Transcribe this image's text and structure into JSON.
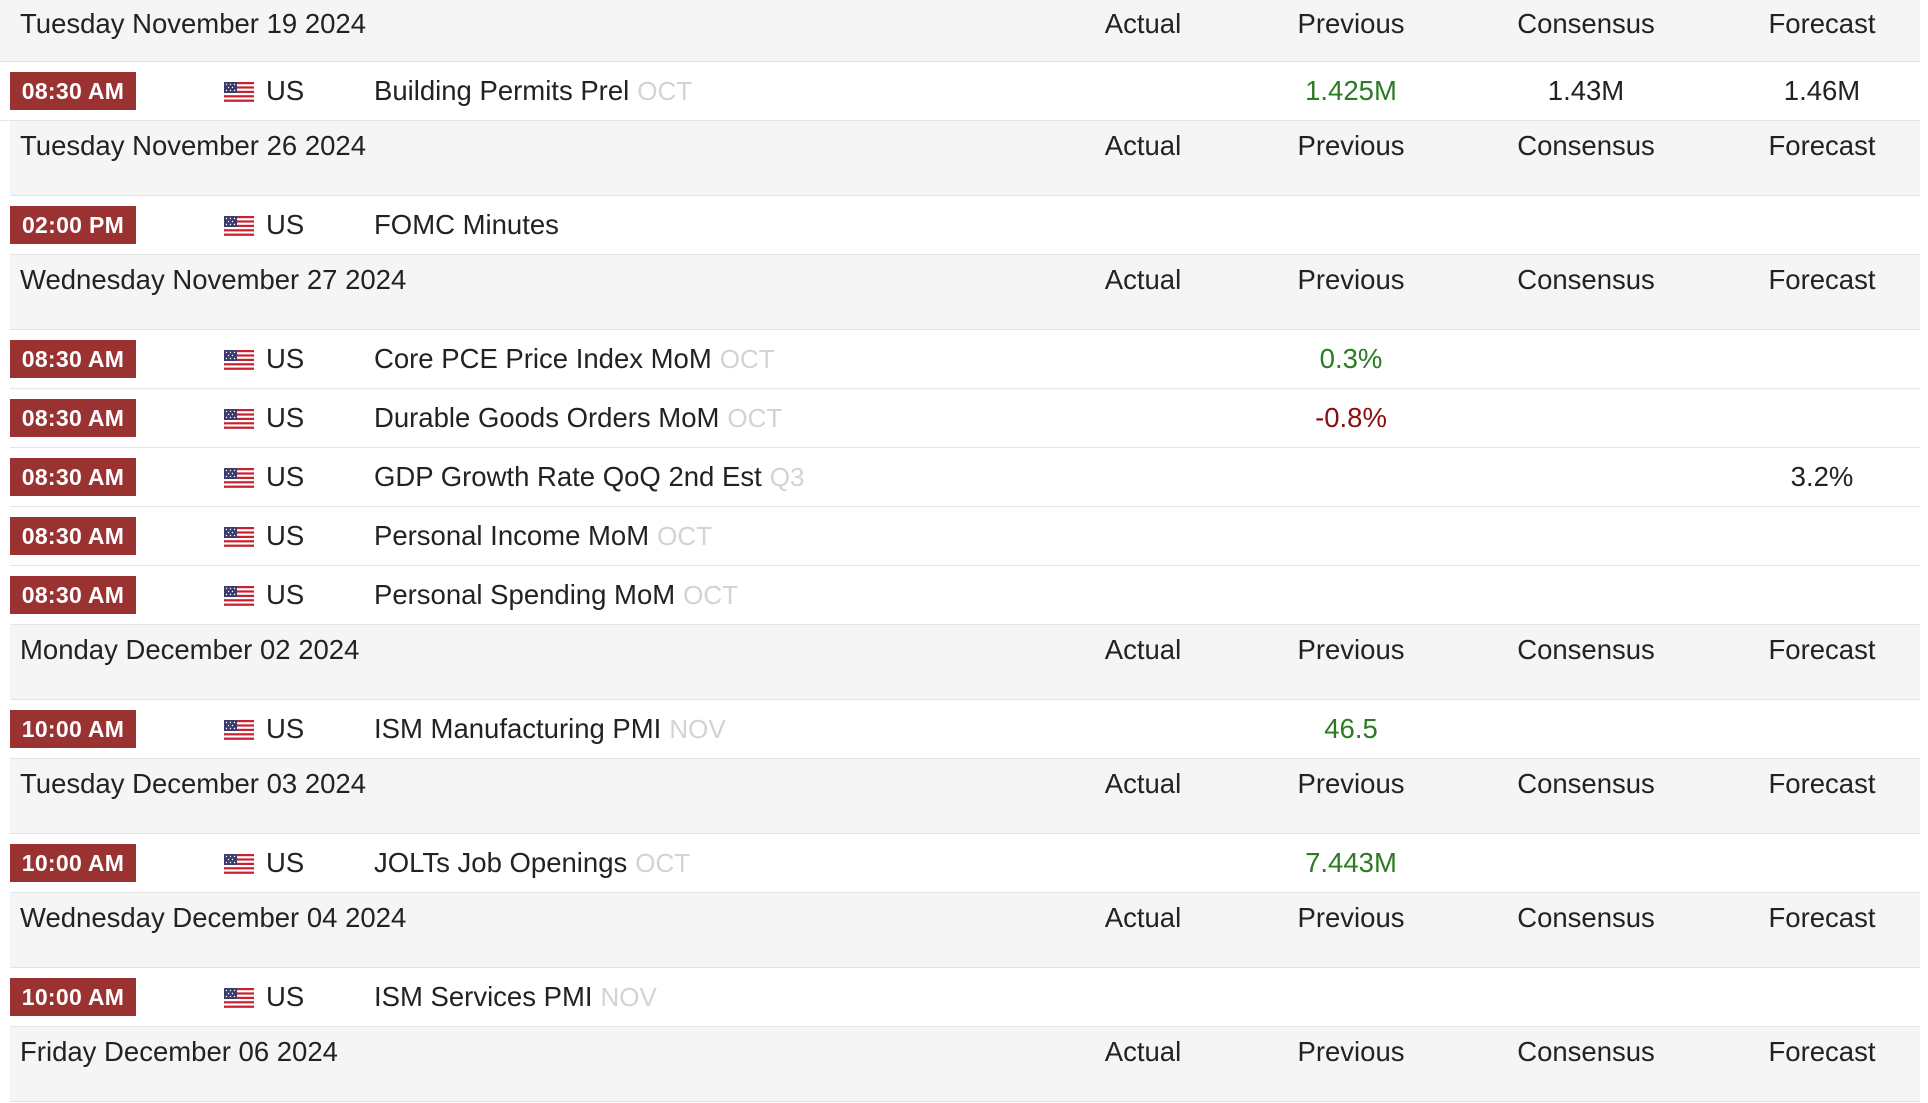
{
  "columns": {
    "actual": "Actual",
    "previous": "Previous",
    "consensus": "Consensus",
    "forecast": "Forecast"
  },
  "colors": {
    "time_badge": "#9b3232",
    "positive": "#2d7a24",
    "negative": "#8b0d0d",
    "reference": "#d3d3d3"
  },
  "icons": {
    "flag": "us-flag-icon"
  },
  "days": [
    {
      "date": "Tuesday November 19 2024",
      "events": [
        {
          "time": "08:30 AM",
          "country": "US",
          "name": "Building Permits Prel",
          "reference": "OCT",
          "actual": "",
          "previous": "1.425M",
          "previous_tone": "pos",
          "consensus": "1.43M",
          "forecast": "1.46M"
        }
      ]
    },
    {
      "date": "Tuesday November 26 2024",
      "events": [
        {
          "time": "02:00 PM",
          "country": "US",
          "name": "FOMC Minutes",
          "reference": "",
          "actual": "",
          "previous": "",
          "previous_tone": "",
          "consensus": "",
          "forecast": ""
        }
      ]
    },
    {
      "date": "Wednesday November 27 2024",
      "events": [
        {
          "time": "08:30 AM",
          "country": "US",
          "name": "Core PCE Price Index MoM",
          "reference": "OCT",
          "actual": "",
          "previous": "0.3%",
          "previous_tone": "pos",
          "consensus": "",
          "forecast": ""
        },
        {
          "time": "08:30 AM",
          "country": "US",
          "name": "Durable Goods Orders MoM",
          "reference": "OCT",
          "actual": "",
          "previous": "-0.8%",
          "previous_tone": "neg",
          "consensus": "",
          "forecast": ""
        },
        {
          "time": "08:30 AM",
          "country": "US",
          "name": "GDP Growth Rate QoQ 2nd Est",
          "reference": "Q3",
          "actual": "",
          "previous": "",
          "previous_tone": "",
          "consensus": "",
          "forecast": "3.2%"
        },
        {
          "time": "08:30 AM",
          "country": "US",
          "name": "Personal Income MoM",
          "reference": "OCT",
          "actual": "",
          "previous": "",
          "previous_tone": "",
          "consensus": "",
          "forecast": ""
        },
        {
          "time": "08:30 AM",
          "country": "US",
          "name": "Personal Spending MoM",
          "reference": "OCT",
          "actual": "",
          "previous": "",
          "previous_tone": "",
          "consensus": "",
          "forecast": ""
        }
      ]
    },
    {
      "date": "Monday December 02 2024",
      "events": [
        {
          "time": "10:00 AM",
          "country": "US",
          "name": "ISM Manufacturing PMI",
          "reference": "NOV",
          "actual": "",
          "previous": "46.5",
          "previous_tone": "pos",
          "consensus": "",
          "forecast": ""
        }
      ]
    },
    {
      "date": "Tuesday December 03 2024",
      "events": [
        {
          "time": "10:00 AM",
          "country": "US",
          "name": "JOLTs Job Openings",
          "reference": "OCT",
          "actual": "",
          "previous": "7.443M",
          "previous_tone": "pos",
          "consensus": "",
          "forecast": ""
        }
      ]
    },
    {
      "date": "Wednesday December 04 2024",
      "events": [
        {
          "time": "10:00 AM",
          "country": "US",
          "name": "ISM Services PMI",
          "reference": "NOV",
          "actual": "",
          "previous": "",
          "previous_tone": "",
          "consensus": "",
          "forecast": ""
        }
      ]
    },
    {
      "date": "Friday December 06 2024",
      "events": []
    }
  ]
}
